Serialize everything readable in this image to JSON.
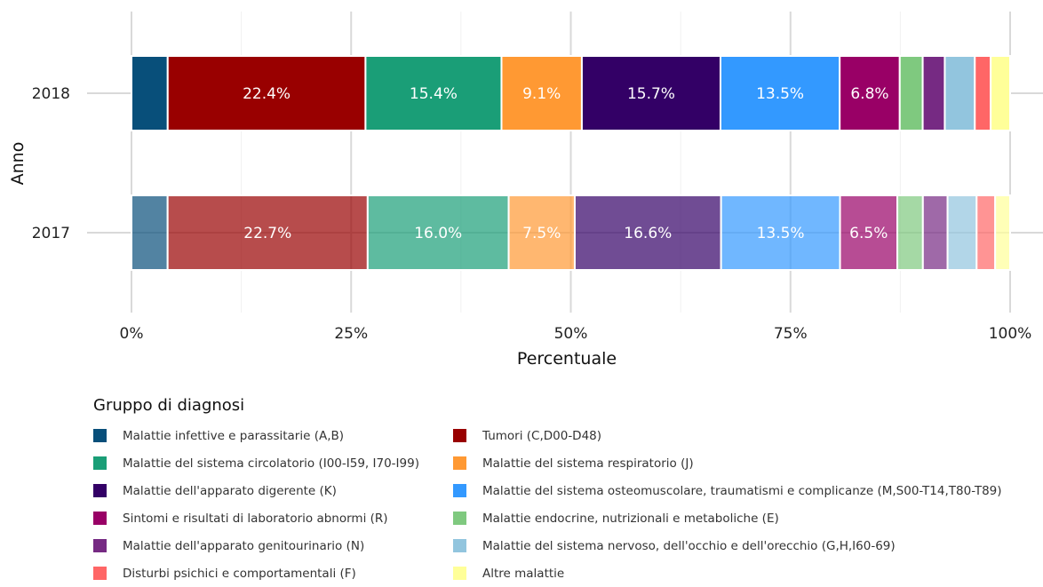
{
  "chart_data": {
    "type": "bar",
    "orientation": "horizontal",
    "stacked": true,
    "normalized": true,
    "xlabel": "Percentuale",
    "ylabel": "Anno",
    "x_ticks": [
      "0%",
      "25%",
      "50%",
      "75%",
      "100%"
    ],
    "xlim": [
      0,
      100
    ],
    "grid": true,
    "legend_position": "bottom",
    "legend_title": "Gruppo di diagnosi",
    "categories": [
      "2018",
      "2017"
    ],
    "series": [
      {
        "name": "Malattie infettive e parassitarie (A,B)",
        "color": "#084f7a",
        "values": [
          4.1,
          4.1
        ],
        "labels": [
          "",
          ""
        ]
      },
      {
        "name": "Tumori (C,D00-D48)",
        "color": "#990000",
        "values": [
          22.4,
          22.7
        ],
        "labels": [
          "22.4%",
          "22.7%"
        ]
      },
      {
        "name": "Malattie del sistema circolatorio (I00-I59, I70-I99)",
        "color": "#1a9e77",
        "values": [
          15.4,
          16.0
        ],
        "labels": [
          "15.4%",
          "16.0%"
        ]
      },
      {
        "name": "Malattie del sistema respiratorio (J)",
        "color": "#ff9933",
        "values": [
          9.1,
          7.5
        ],
        "labels": [
          "9.1%",
          "7.5%"
        ]
      },
      {
        "name": "Malattie dell'apparato digerente (K)",
        "color": "#330066",
        "values": [
          15.7,
          16.6
        ],
        "labels": [
          "15.7%",
          "16.6%"
        ]
      },
      {
        "name": "Malattie del sistema osteomuscolare, traumatismi e complicanze (M,S00-T14,T80-T89)",
        "color": "#3399ff",
        "values": [
          13.5,
          13.5
        ],
        "labels": [
          "13.5%",
          "13.5%"
        ]
      },
      {
        "name": "Sintomi e risultati di laboratorio abnormi (R)",
        "color": "#990066",
        "values": [
          6.8,
          6.5
        ],
        "labels": [
          "6.8%",
          "6.5%"
        ]
      },
      {
        "name": "Malattie endocrine, nutrizionali e metaboliche (E)",
        "color": "#7fc97f",
        "values": [
          2.6,
          2.9
        ],
        "labels": [
          "",
          ""
        ]
      },
      {
        "name": "Malattie dell'apparato genitourinario (N)",
        "color": "#762a83",
        "values": [
          2.5,
          2.8
        ],
        "labels": [
          "",
          ""
        ]
      },
      {
        "name": "Malattie del sistema nervoso, dell'occhio e dell'orecchio (G,H,I60-69)",
        "color": "#92c5de",
        "values": [
          3.4,
          3.3
        ],
        "labels": [
          "",
          ""
        ]
      },
      {
        "name": "Disturbi psichici e comportamentali (F)",
        "color": "#ff6666",
        "values": [
          1.8,
          2.1
        ],
        "labels": [
          "",
          ""
        ]
      },
      {
        "name": "Altre malattie",
        "color": "#ffff99",
        "values": [
          2.2,
          1.7
        ],
        "labels": [
          "",
          ""
        ]
      }
    ]
  }
}
